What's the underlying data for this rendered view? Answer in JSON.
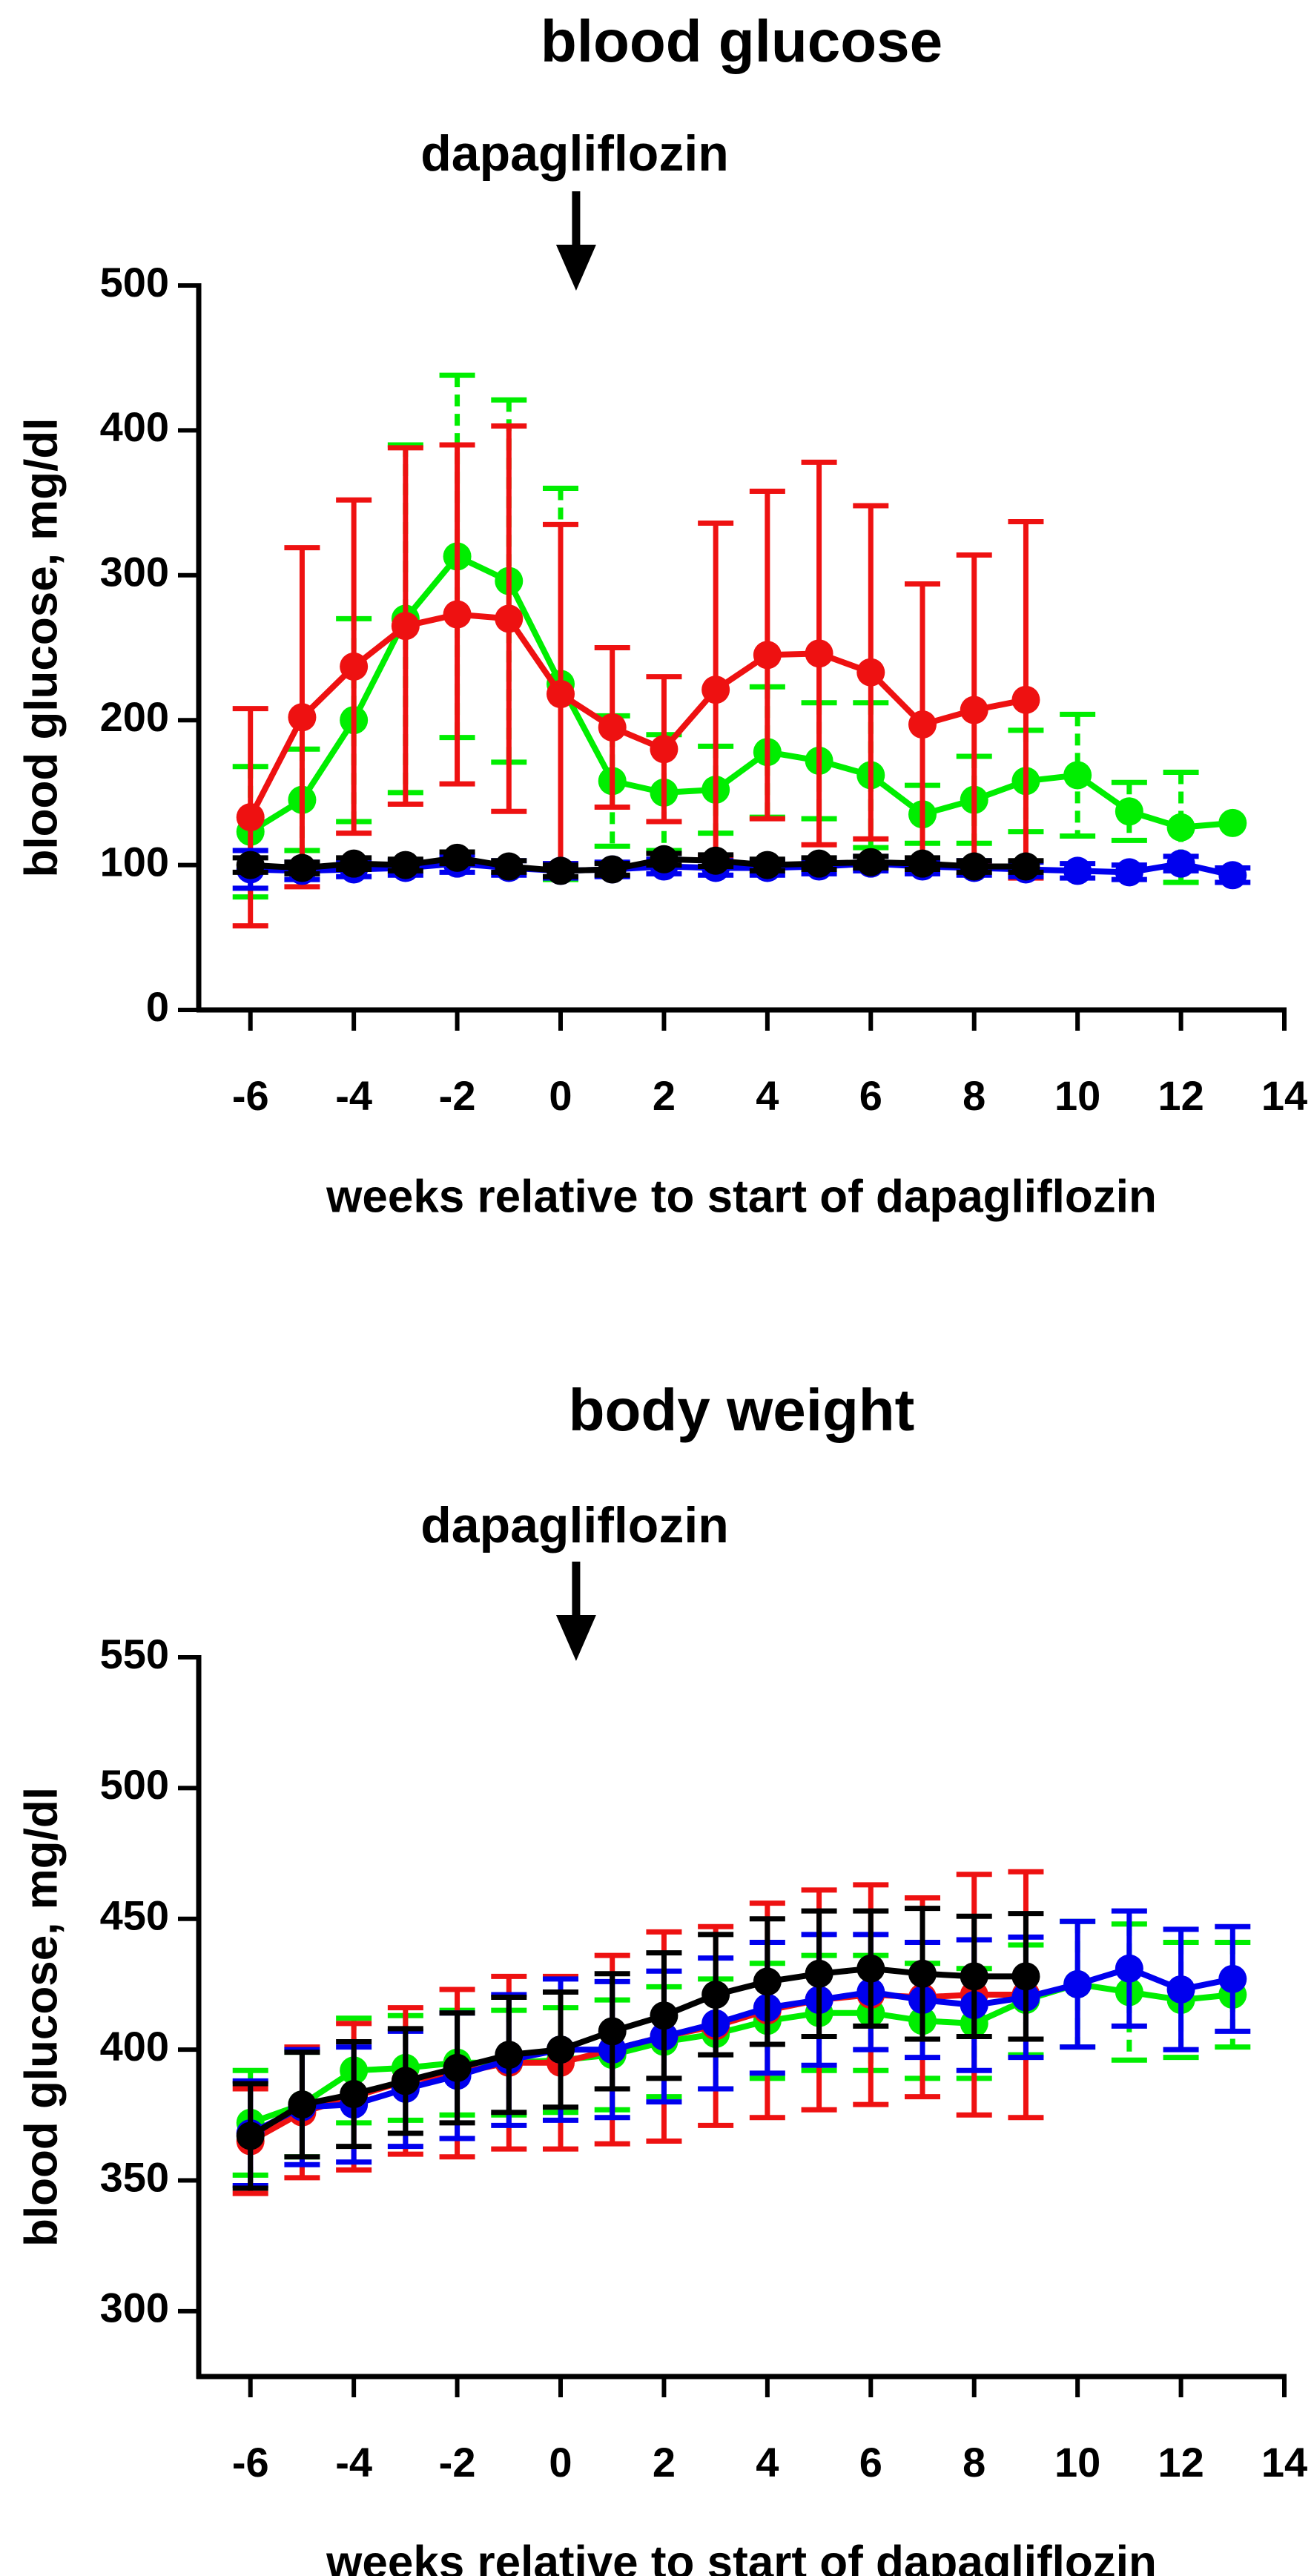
{
  "chart_data": [
    {
      "type": "line",
      "title": "blood glucose",
      "annotation": "dapagliflozin",
      "annotation_x": 0.3,
      "xlabel": "weeks relative to start of dapagliflozin",
      "ylabel": "blood glucose, mg/dl",
      "xlim": [
        -7,
        14
      ],
      "ylim": [
        0,
        500
      ],
      "xticks": [
        -6,
        -4,
        -2,
        0,
        2,
        4,
        6,
        8,
        10,
        12,
        14
      ],
      "yticks": [
        0,
        100,
        200,
        300,
        400,
        500
      ],
      "error_bars": "mean ± SD",
      "series": [
        {
          "name": "green",
          "color": "#00ee00",
          "x": [
            -6,
            -5,
            -4,
            -3,
            -2,
            -1,
            0,
            1,
            2,
            3,
            4,
            5,
            6,
            7,
            8,
            9,
            10,
            11,
            12,
            13
          ],
          "y": [
            123,
            145,
            200,
            270,
            313,
            296,
            225,
            158,
            150,
            152,
            178,
            172,
            162,
            135,
            145,
            158,
            162,
            137,
            126,
            129
          ],
          "err": [
            45,
            35,
            70,
            120,
            125,
            125,
            135,
            45,
            40,
            30,
            45,
            40,
            50,
            20,
            30,
            35,
            42,
            20,
            38,
            0
          ]
        },
        {
          "name": "red",
          "color": "#ee1111",
          "x": [
            -6,
            -5,
            -4,
            -3,
            -2,
            -1,
            0,
            1,
            2,
            3,
            4,
            5,
            6,
            7,
            8,
            9
          ],
          "y": [
            133,
            202,
            237,
            265,
            273,
            270,
            218,
            195,
            180,
            221,
            245,
            246,
            233,
            197,
            207,
            214
          ],
          "err": [
            75,
            117,
            115,
            123,
            117,
            133,
            117,
            55,
            50,
            115,
            113,
            132,
            115,
            97,
            107,
            123
          ]
        },
        {
          "name": "blue",
          "color": "#0000ee",
          "x": [
            -6,
            -5,
            -4,
            -3,
            -2,
            -1,
            0,
            1,
            2,
            3,
            4,
            5,
            6,
            7,
            8,
            9,
            10,
            11,
            12,
            13
          ],
          "y": [
            97,
            96,
            97,
            98,
            101,
            98,
            96,
            97,
            99,
            98,
            98,
            99,
            101,
            99,
            98,
            97,
            96,
            95,
            101,
            93
          ],
          "err": [
            13,
            6,
            5,
            5,
            6,
            5,
            5,
            5,
            5,
            5,
            5,
            5,
            5,
            5,
            5,
            5,
            5,
            5,
            5,
            5
          ]
        },
        {
          "name": "black",
          "color": "#000000",
          "x": [
            -6,
            -5,
            -4,
            -3,
            -2,
            -1,
            0,
            1,
            2,
            3,
            4,
            5,
            6,
            7,
            8,
            9
          ],
          "y": [
            100,
            98,
            101,
            100,
            105,
            99,
            96,
            97,
            104,
            103,
            100,
            101,
            102,
            101,
            99,
            99
          ],
          "err": [
            5,
            4,
            4,
            4,
            4,
            4,
            4,
            4,
            4,
            4,
            4,
            4,
            4,
            4,
            4,
            4
          ]
        }
      ]
    },
    {
      "type": "line",
      "title": "body weight",
      "annotation": "dapagliflozin",
      "annotation_x": 0.3,
      "xlabel": "weeks relative to start of dapagliflozin",
      "ylabel": "blood glucose, mg/dl",
      "xlim": [
        -7,
        14
      ],
      "ylim": [
        275,
        550
      ],
      "xticks": [
        -6,
        -4,
        -2,
        0,
        2,
        4,
        6,
        8,
        10,
        12,
        14
      ],
      "yticks": [
        300,
        350,
        400,
        450,
        500,
        550
      ],
      "error_bars": "mean ± SD",
      "series": [
        {
          "name": "green",
          "color": "#00ee00",
          "x": [
            -6,
            -5,
            -4,
            -3,
            -2,
            -1,
            0,
            1,
            2,
            3,
            4,
            5,
            6,
            7,
            8,
            9,
            10,
            11,
            12,
            13
          ],
          "y": [
            372,
            379,
            392,
            393,
            395,
            395,
            396,
            398,
            403,
            406,
            411,
            414,
            414,
            411,
            410,
            419,
            425,
            422,
            419,
            421
          ],
          "err": [
            20,
            20,
            20,
            20,
            20,
            20,
            20,
            21,
            21,
            21,
            22,
            22,
            22,
            22,
            21,
            21,
            24,
            26,
            22,
            20
          ]
        },
        {
          "name": "red",
          "color": "#ee1111",
          "x": [
            -6,
            -5,
            -4,
            -3,
            -2,
            -1,
            0,
            1,
            2,
            3,
            4,
            5,
            6,
            7,
            8,
            9
          ],
          "y": [
            365,
            376,
            382,
            388,
            391,
            395,
            395,
            400,
            405,
            409,
            415,
            419,
            421,
            420,
            421,
            421
          ],
          "err": [
            20,
            25,
            28,
            28,
            32,
            33,
            33,
            36,
            40,
            38,
            41,
            42,
            42,
            38,
            46,
            47
          ]
        },
        {
          "name": "blue",
          "color": "#0000ee",
          "x": [
            -6,
            -5,
            -4,
            -3,
            -2,
            -1,
            0,
            1,
            2,
            3,
            4,
            5,
            6,
            7,
            8,
            9,
            10,
            11,
            12,
            13
          ],
          "y": [
            368,
            378,
            379,
            385,
            390,
            396,
            400,
            400,
            405,
            410,
            416,
            419,
            422,
            419,
            417,
            420,
            425,
            431,
            423,
            427
          ],
          "err": [
            20,
            22,
            22,
            22,
            24,
            25,
            27,
            26,
            25,
            25,
            25,
            25,
            22,
            22,
            25,
            23,
            24,
            22,
            23,
            20
          ]
        },
        {
          "name": "black",
          "color": "#000000",
          "x": [
            -6,
            -5,
            -4,
            -3,
            -2,
            -1,
            0,
            1,
            2,
            3,
            4,
            5,
            6,
            7,
            8,
            9
          ],
          "y": [
            367,
            379,
            383,
            388,
            393,
            398,
            400,
            407,
            413,
            421,
            426,
            429,
            431,
            429,
            428,
            428
          ],
          "err": [
            20,
            20,
            20,
            20,
            21,
            22,
            22,
            22,
            24,
            23,
            24,
            24,
            22,
            25,
            23,
            24
          ]
        }
      ]
    }
  ]
}
